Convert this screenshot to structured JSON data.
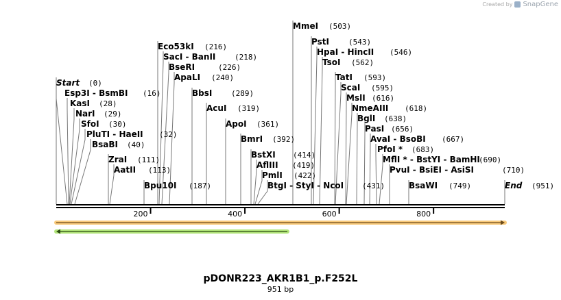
{
  "brand": {
    "created_by": "Created by",
    "name": "SnapGene"
  },
  "plasmid": {
    "name": "pDONR223_AKR1B1_p.F252L",
    "length_label": "951 bp"
  },
  "map": {
    "sequence_length": 951,
    "axis_ticks": [
      "200",
      "400",
      "600",
      "800"
    ],
    "sites": [
      {
        "name": "Start",
        "pos": "(0)",
        "italic": true
      },
      {
        "name": "Esp3I  - BsmBI",
        "pos": "(16)"
      },
      {
        "name": "KasI",
        "pos": "(28)"
      },
      {
        "name": "NarI",
        "pos": "(29)"
      },
      {
        "name": "SfoI",
        "pos": "(30)"
      },
      {
        "name": "PluTI  - HaeII",
        "pos": "(32)"
      },
      {
        "name": "BsaBI",
        "pos": "(40)"
      },
      {
        "name": "ZraI",
        "pos": "(111)"
      },
      {
        "name": "AatII",
        "pos": "(113)"
      },
      {
        "name": "Bpu10I",
        "pos": "(187)"
      },
      {
        "name": "Eco53kI",
        "pos": "(216)"
      },
      {
        "name": "SacI  - BanII",
        "pos": "(218)"
      },
      {
        "name": "BseRI",
        "pos": "(226)"
      },
      {
        "name": "ApaLI",
        "pos": "(240)"
      },
      {
        "name": "BbsI",
        "pos": "(289)"
      },
      {
        "name": "AcuI",
        "pos": "(319)"
      },
      {
        "name": "ApoI",
        "pos": "(361)"
      },
      {
        "name": "BmrI",
        "pos": "(392)"
      },
      {
        "name": "BstXI",
        "pos": "(414)"
      },
      {
        "name": "AflIII",
        "pos": "(419)"
      },
      {
        "name": "PmlI",
        "pos": "(422)"
      },
      {
        "name": "BtgI  - StyI  - NcoI",
        "pos": "(431)"
      },
      {
        "name": "MmeI",
        "pos": "(503)"
      },
      {
        "name": "PstI",
        "pos": "(543)"
      },
      {
        "name": "HpaI  - HincII",
        "pos": "(546)"
      },
      {
        "name": "TsoI",
        "pos": "(562)"
      },
      {
        "name": "TatI",
        "pos": "(593)"
      },
      {
        "name": "ScaI",
        "pos": "(595)"
      },
      {
        "name": "MslI",
        "pos": "(616)"
      },
      {
        "name": "NmeAIII",
        "pos": "(618)"
      },
      {
        "name": "BglI",
        "pos": "(638)"
      },
      {
        "name": "PasI",
        "pos": "(656)"
      },
      {
        "name": "AvaI  - BsoBI",
        "pos": "(667)"
      },
      {
        "name": "PfoI *",
        "pos": "(683)"
      },
      {
        "name": "MflI *  - BstYI  - BamHI",
        "pos": "(690)"
      },
      {
        "name": "PvuI  - BsiEI  - AsiSI",
        "pos": "(710)"
      },
      {
        "name": "BsaWI",
        "pos": "(749)"
      },
      {
        "name": "End",
        "pos": "(951)",
        "italic": true
      }
    ],
    "features": [
      {
        "name": "forward-feature-arrow",
        "direction": "forward",
        "color": "#f5a623",
        "start": 0,
        "end": 951
      },
      {
        "name": "reverse-feature-arrow",
        "direction": "reverse",
        "color": "#7ed321",
        "start": 0,
        "end": 490
      }
    ]
  }
}
